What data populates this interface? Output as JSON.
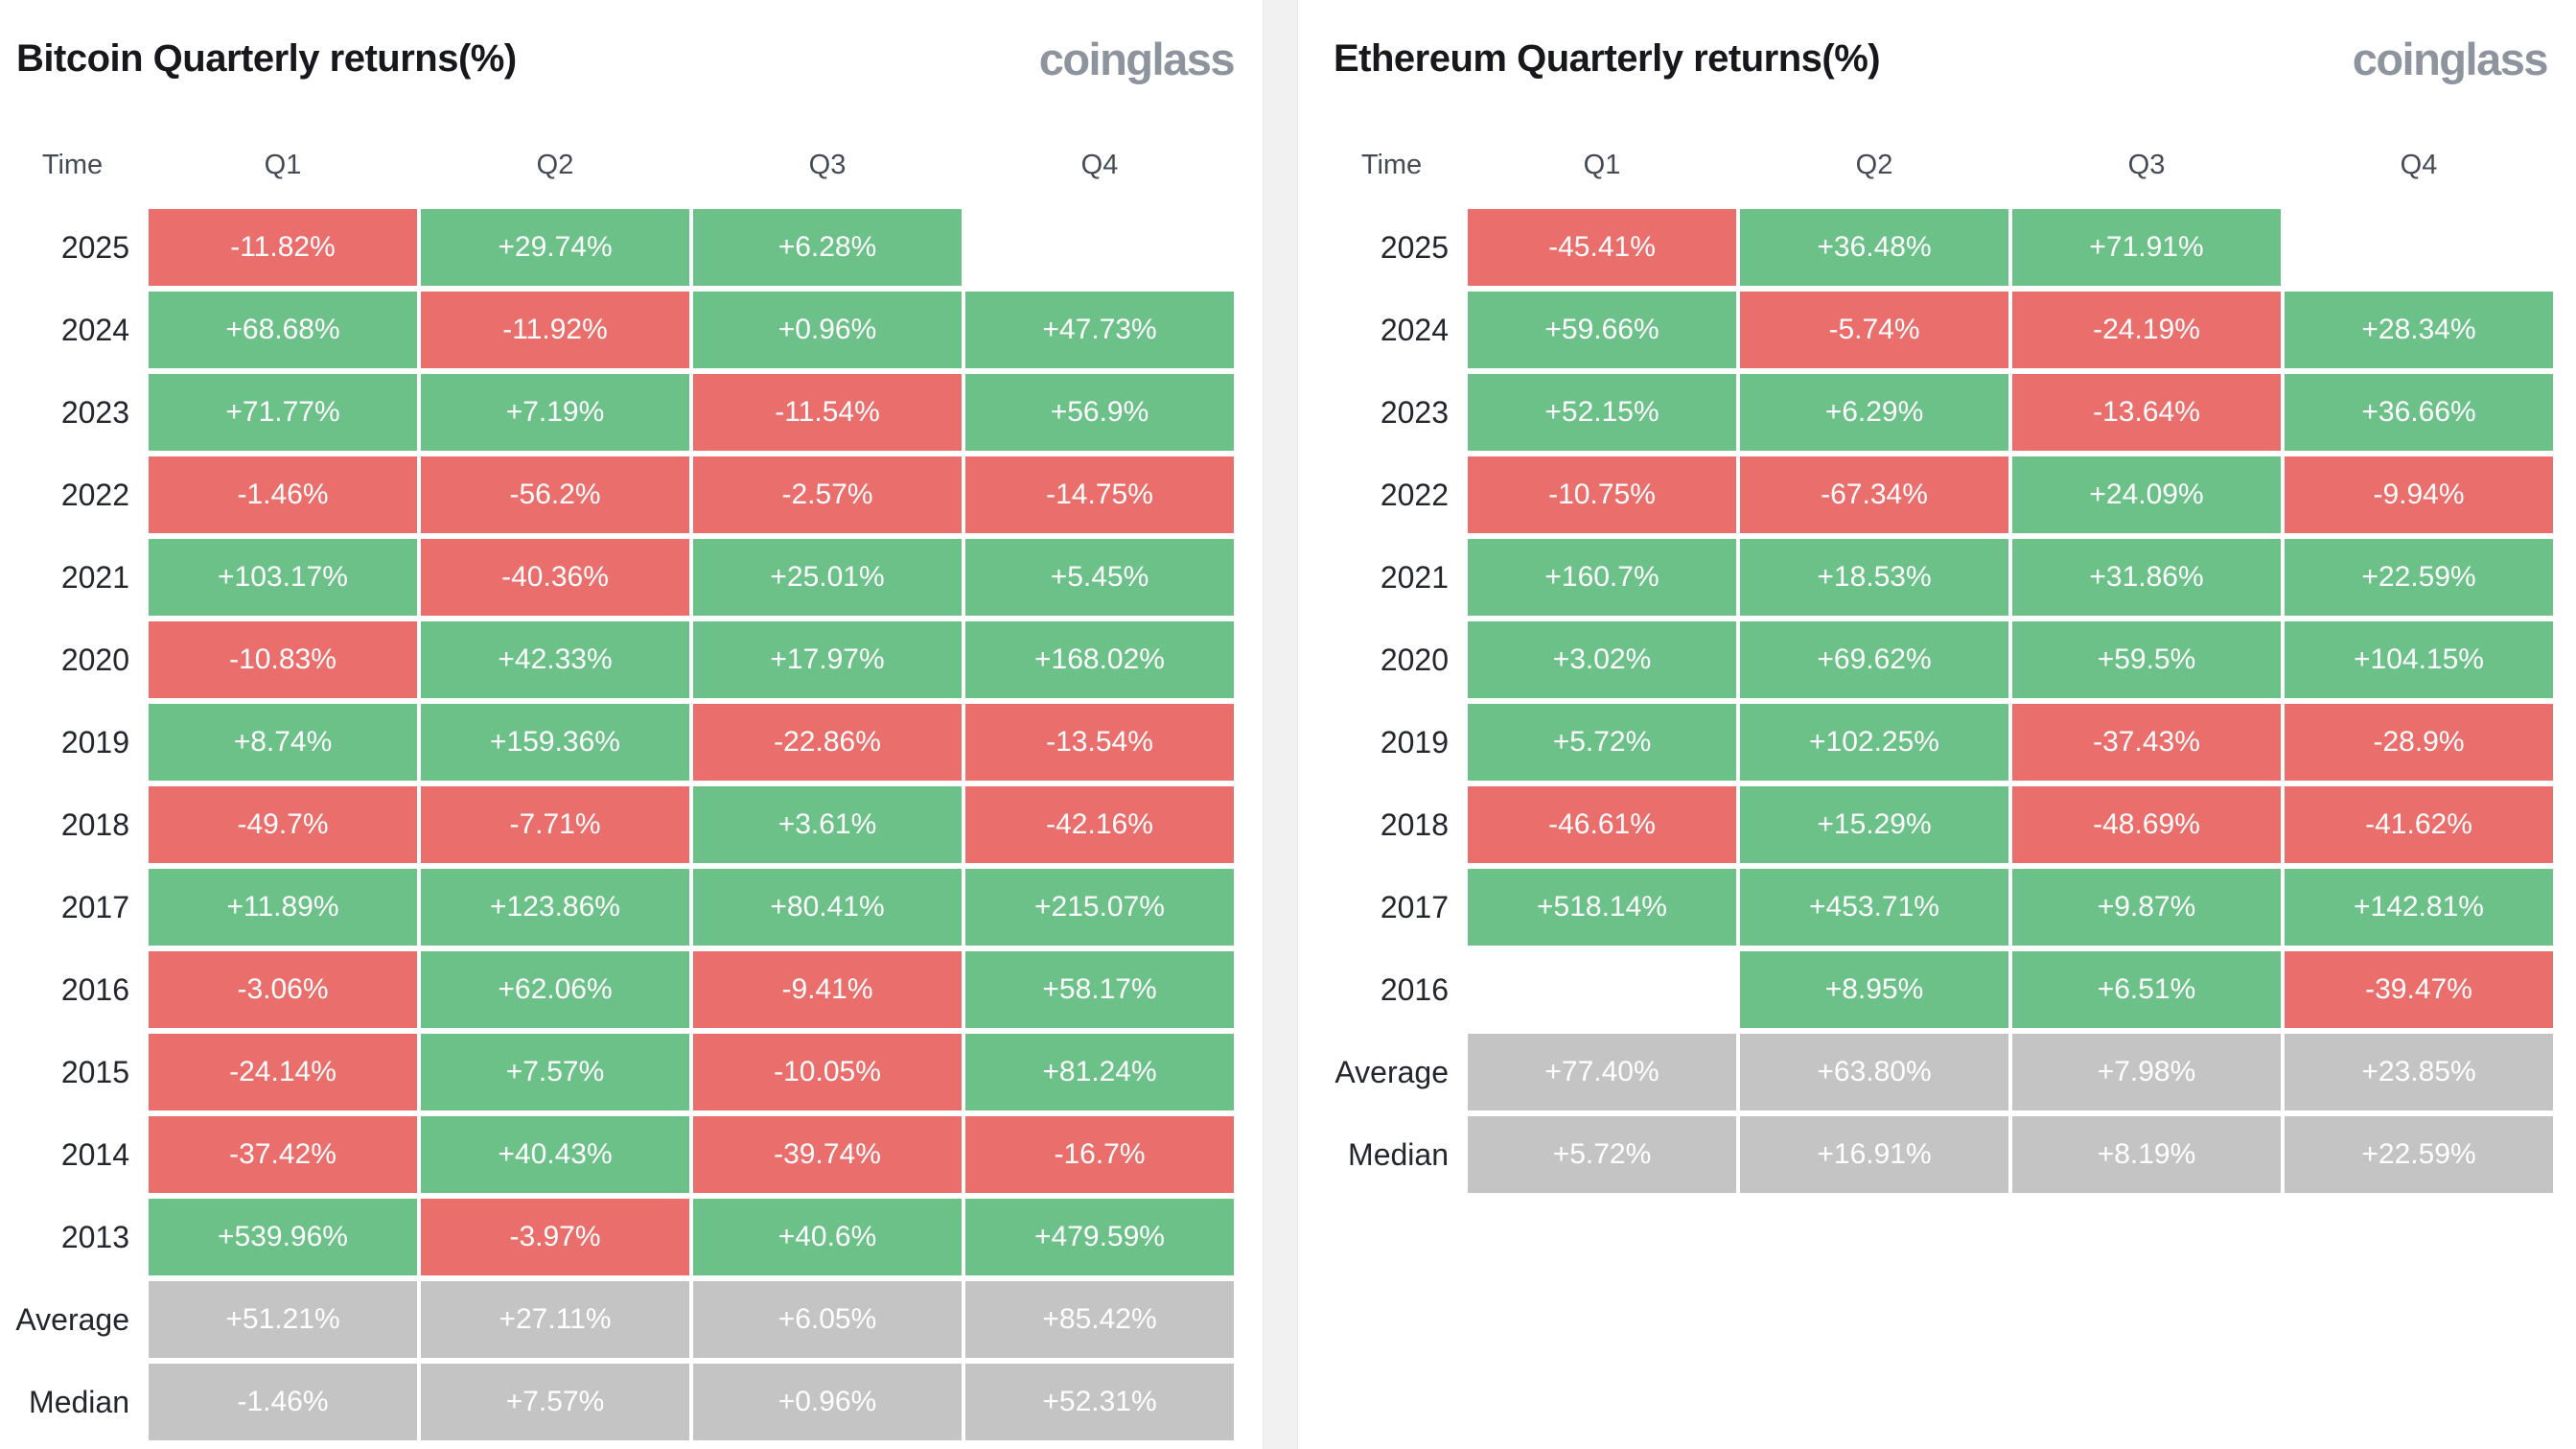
{
  "colors": {
    "green": "#6cc189",
    "red": "#e96e6c",
    "gray": "#c4c4c4",
    "title_text": "#17181b",
    "label_text": "#23262c",
    "header_text": "#454b55",
    "logo_text": "#8e949d",
    "cell_text": "#ffffff",
    "divider_bg": "#f1f1f2",
    "divider_border": "#e4e6e8"
  },
  "chart_data": [
    {
      "type": "table",
      "title": "Bitcoin Quarterly returns(%)",
      "watermark": "coinglass",
      "columns": [
        "Time",
        "Q1",
        "Q2",
        "Q3",
        "Q4"
      ],
      "rows": [
        {
          "label": "2025",
          "cells": [
            {
              "value": "-11.82%",
              "color": "red"
            },
            {
              "value": "+29.74%",
              "color": "green"
            },
            {
              "value": "+6.28%",
              "color": "green"
            },
            {
              "value": "",
              "color": "empty"
            }
          ]
        },
        {
          "label": "2024",
          "cells": [
            {
              "value": "+68.68%",
              "color": "green"
            },
            {
              "value": "-11.92%",
              "color": "red"
            },
            {
              "value": "+0.96%",
              "color": "green"
            },
            {
              "value": "+47.73%",
              "color": "green"
            }
          ]
        },
        {
          "label": "2023",
          "cells": [
            {
              "value": "+71.77%",
              "color": "green"
            },
            {
              "value": "+7.19%",
              "color": "green"
            },
            {
              "value": "-11.54%",
              "color": "red"
            },
            {
              "value": "+56.9%",
              "color": "green"
            }
          ]
        },
        {
          "label": "2022",
          "cells": [
            {
              "value": "-1.46%",
              "color": "red"
            },
            {
              "value": "-56.2%",
              "color": "red"
            },
            {
              "value": "-2.57%",
              "color": "red"
            },
            {
              "value": "-14.75%",
              "color": "red"
            }
          ]
        },
        {
          "label": "2021",
          "cells": [
            {
              "value": "+103.17%",
              "color": "green"
            },
            {
              "value": "-40.36%",
              "color": "red"
            },
            {
              "value": "+25.01%",
              "color": "green"
            },
            {
              "value": "+5.45%",
              "color": "green"
            }
          ]
        },
        {
          "label": "2020",
          "cells": [
            {
              "value": "-10.83%",
              "color": "red"
            },
            {
              "value": "+42.33%",
              "color": "green"
            },
            {
              "value": "+17.97%",
              "color": "green"
            },
            {
              "value": "+168.02%",
              "color": "green"
            }
          ]
        },
        {
          "label": "2019",
          "cells": [
            {
              "value": "+8.74%",
              "color": "green"
            },
            {
              "value": "+159.36%",
              "color": "green"
            },
            {
              "value": "-22.86%",
              "color": "red"
            },
            {
              "value": "-13.54%",
              "color": "red"
            }
          ]
        },
        {
          "label": "2018",
          "cells": [
            {
              "value": "-49.7%",
              "color": "red"
            },
            {
              "value": "-7.71%",
              "color": "red"
            },
            {
              "value": "+3.61%",
              "color": "green"
            },
            {
              "value": "-42.16%",
              "color": "red"
            }
          ]
        },
        {
          "label": "2017",
          "cells": [
            {
              "value": "+11.89%",
              "color": "green"
            },
            {
              "value": "+123.86%",
              "color": "green"
            },
            {
              "value": "+80.41%",
              "color": "green"
            },
            {
              "value": "+215.07%",
              "color": "green"
            }
          ]
        },
        {
          "label": "2016",
          "cells": [
            {
              "value": "-3.06%",
              "color": "red"
            },
            {
              "value": "+62.06%",
              "color": "green"
            },
            {
              "value": "-9.41%",
              "color": "red"
            },
            {
              "value": "+58.17%",
              "color": "green"
            }
          ]
        },
        {
          "label": "2015",
          "cells": [
            {
              "value": "-24.14%",
              "color": "red"
            },
            {
              "value": "+7.57%",
              "color": "green"
            },
            {
              "value": "-10.05%",
              "color": "red"
            },
            {
              "value": "+81.24%",
              "color": "green"
            }
          ]
        },
        {
          "label": "2014",
          "cells": [
            {
              "value": "-37.42%",
              "color": "red"
            },
            {
              "value": "+40.43%",
              "color": "green"
            },
            {
              "value": "-39.74%",
              "color": "red"
            },
            {
              "value": "-16.7%",
              "color": "red"
            }
          ]
        },
        {
          "label": "2013",
          "cells": [
            {
              "value": "+539.96%",
              "color": "green"
            },
            {
              "value": "-3.97%",
              "color": "red"
            },
            {
              "value": "+40.6%",
              "color": "green"
            },
            {
              "value": "+479.59%",
              "color": "green"
            }
          ]
        },
        {
          "label": "Average",
          "cells": [
            {
              "value": "+51.21%",
              "color": "gray"
            },
            {
              "value": "+27.11%",
              "color": "gray"
            },
            {
              "value": "+6.05%",
              "color": "gray"
            },
            {
              "value": "+85.42%",
              "color": "gray"
            }
          ]
        },
        {
          "label": "Median",
          "cells": [
            {
              "value": "-1.46%",
              "color": "gray"
            },
            {
              "value": "+7.57%",
              "color": "gray"
            },
            {
              "value": "+0.96%",
              "color": "gray"
            },
            {
              "value": "+52.31%",
              "color": "gray"
            }
          ]
        }
      ]
    },
    {
      "type": "table",
      "title": "Ethereum Quarterly returns(%)",
      "watermark": "coinglass",
      "columns": [
        "Time",
        "Q1",
        "Q2",
        "Q3",
        "Q4"
      ],
      "rows": [
        {
          "label": "2025",
          "cells": [
            {
              "value": "-45.41%",
              "color": "red"
            },
            {
              "value": "+36.48%",
              "color": "green"
            },
            {
              "value": "+71.91%",
              "color": "green"
            },
            {
              "value": "",
              "color": "empty"
            }
          ]
        },
        {
          "label": "2024",
          "cells": [
            {
              "value": "+59.66%",
              "color": "green"
            },
            {
              "value": "-5.74%",
              "color": "red"
            },
            {
              "value": "-24.19%",
              "color": "red"
            },
            {
              "value": "+28.34%",
              "color": "green"
            }
          ]
        },
        {
          "label": "2023",
          "cells": [
            {
              "value": "+52.15%",
              "color": "green"
            },
            {
              "value": "+6.29%",
              "color": "green"
            },
            {
              "value": "-13.64%",
              "color": "red"
            },
            {
              "value": "+36.66%",
              "color": "green"
            }
          ]
        },
        {
          "label": "2022",
          "cells": [
            {
              "value": "-10.75%",
              "color": "red"
            },
            {
              "value": "-67.34%",
              "color": "red"
            },
            {
              "value": "+24.09%",
              "color": "green"
            },
            {
              "value": "-9.94%",
              "color": "red"
            }
          ]
        },
        {
          "label": "2021",
          "cells": [
            {
              "value": "+160.7%",
              "color": "green"
            },
            {
              "value": "+18.53%",
              "color": "green"
            },
            {
              "value": "+31.86%",
              "color": "green"
            },
            {
              "value": "+22.59%",
              "color": "green"
            }
          ]
        },
        {
          "label": "2020",
          "cells": [
            {
              "value": "+3.02%",
              "color": "green"
            },
            {
              "value": "+69.62%",
              "color": "green"
            },
            {
              "value": "+59.5%",
              "color": "green"
            },
            {
              "value": "+104.15%",
              "color": "green"
            }
          ]
        },
        {
          "label": "2019",
          "cells": [
            {
              "value": "+5.72%",
              "color": "green"
            },
            {
              "value": "+102.25%",
              "color": "green"
            },
            {
              "value": "-37.43%",
              "color": "red"
            },
            {
              "value": "-28.9%",
              "color": "red"
            }
          ]
        },
        {
          "label": "2018",
          "cells": [
            {
              "value": "-46.61%",
              "color": "red"
            },
            {
              "value": "+15.29%",
              "color": "green"
            },
            {
              "value": "-48.69%",
              "color": "red"
            },
            {
              "value": "-41.62%",
              "color": "red"
            }
          ]
        },
        {
          "label": "2017",
          "cells": [
            {
              "value": "+518.14%",
              "color": "green"
            },
            {
              "value": "+453.71%",
              "color": "green"
            },
            {
              "value": "+9.87%",
              "color": "green"
            },
            {
              "value": "+142.81%",
              "color": "green"
            }
          ]
        },
        {
          "label": "2016",
          "cells": [
            {
              "value": "",
              "color": "empty"
            },
            {
              "value": "+8.95%",
              "color": "green"
            },
            {
              "value": "+6.51%",
              "color": "green"
            },
            {
              "value": "-39.47%",
              "color": "red"
            }
          ]
        },
        {
          "label": "Average",
          "cells": [
            {
              "value": "+77.40%",
              "color": "gray"
            },
            {
              "value": "+63.80%",
              "color": "gray"
            },
            {
              "value": "+7.98%",
              "color": "gray"
            },
            {
              "value": "+23.85%",
              "color": "gray"
            }
          ]
        },
        {
          "label": "Median",
          "cells": [
            {
              "value": "+5.72%",
              "color": "gray"
            },
            {
              "value": "+16.91%",
              "color": "gray"
            },
            {
              "value": "+8.19%",
              "color": "gray"
            },
            {
              "value": "+22.59%",
              "color": "gray"
            }
          ]
        }
      ]
    }
  ]
}
